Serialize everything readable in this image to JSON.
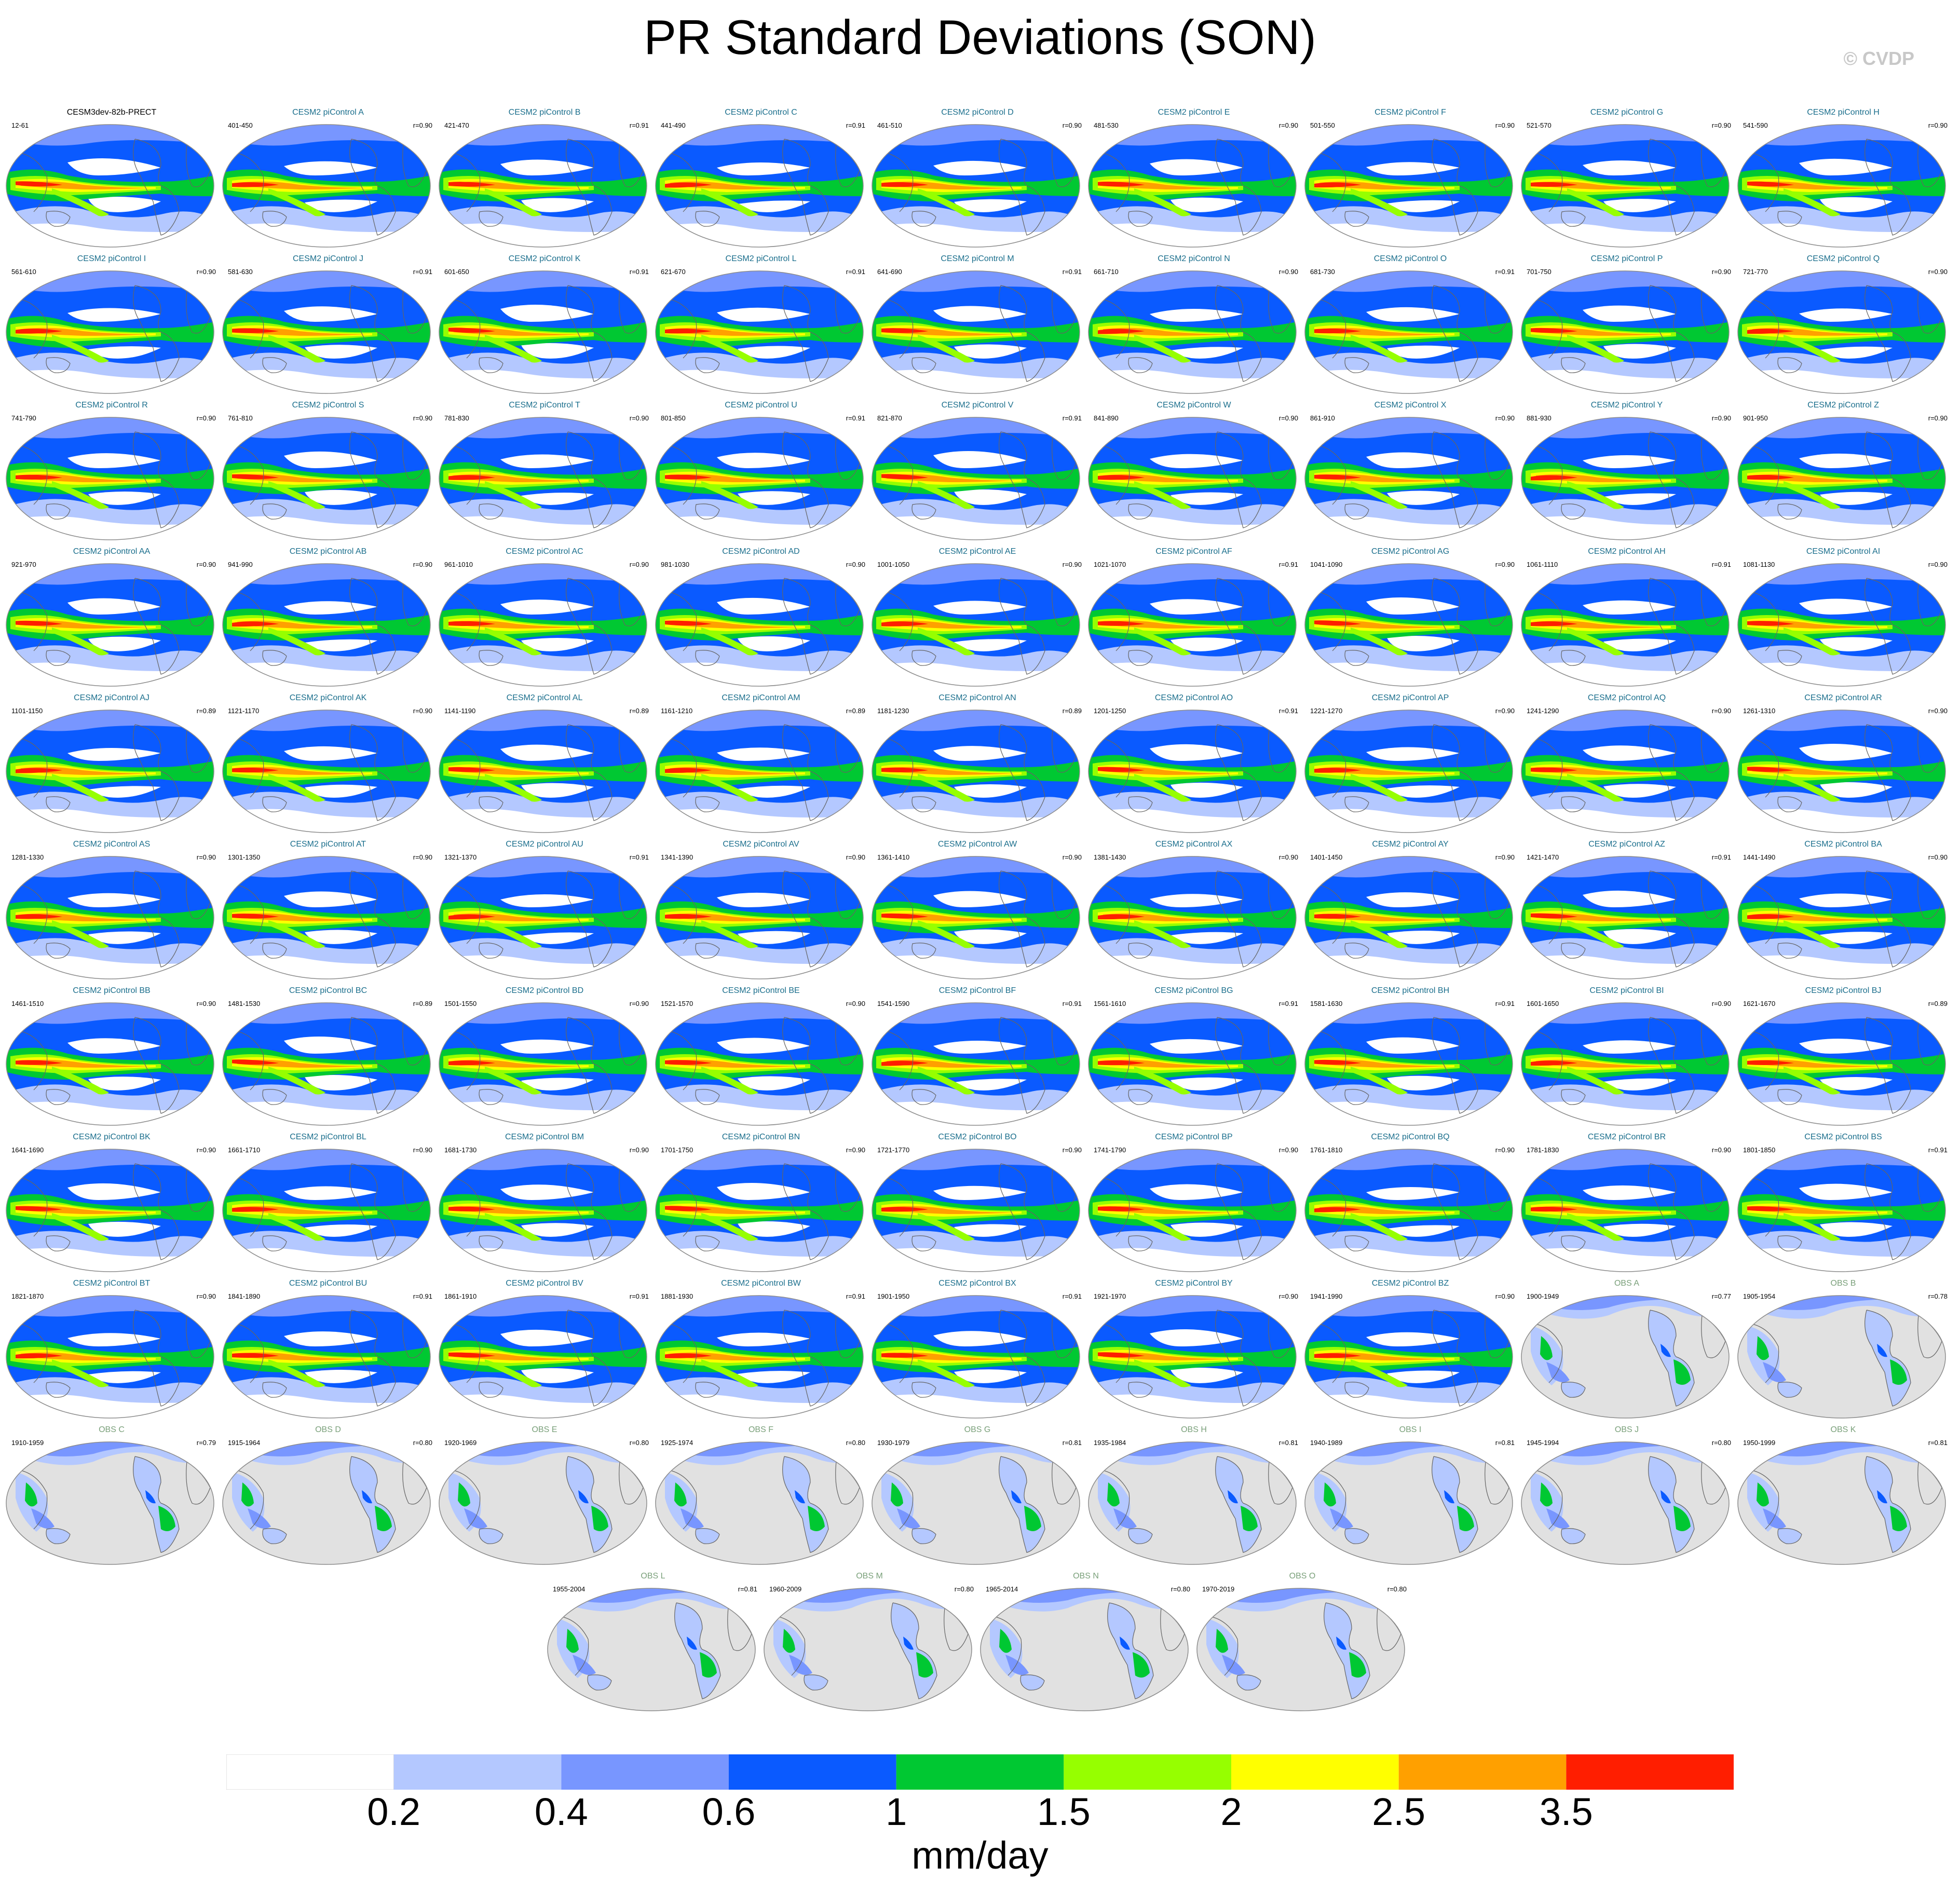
{
  "title": "PR Standard Deviations (SON)",
  "copyright": "© CVDP",
  "colors": {
    "levels": [
      "#ffffff",
      "#b4c8ff",
      "#7896ff",
      "#0a5aff",
      "#00c832",
      "#96ff00",
      "#ffff00",
      "#ffa000",
      "#ff1e00"
    ],
    "land_obs": "#e1e1e1",
    "coast": "#646464"
  },
  "panels": [
    {
      "title": "CESM3dev-82b-PRECT",
      "years": "12-61",
      "r": "",
      "kind": "base"
    },
    {
      "title": "CESM2 piControl A",
      "years": "401-450",
      "r": "r=0.90",
      "kind": "model"
    },
    {
      "title": "CESM2 piControl B",
      "years": "421-470",
      "r": "r=0.91",
      "kind": "model"
    },
    {
      "title": "CESM2 piControl C",
      "years": "441-490",
      "r": "r=0.91",
      "kind": "model"
    },
    {
      "title": "CESM2 piControl D",
      "years": "461-510",
      "r": "r=0.90",
      "kind": "model"
    },
    {
      "title": "CESM2 piControl E",
      "years": "481-530",
      "r": "r=0.90",
      "kind": "model"
    },
    {
      "title": "CESM2 piControl F",
      "years": "501-550",
      "r": "r=0.90",
      "kind": "model"
    },
    {
      "title": "CESM2 piControl G",
      "years": "521-570",
      "r": "r=0.90",
      "kind": "model"
    },
    {
      "title": "CESM2 piControl H",
      "years": "541-590",
      "r": "r=0.90",
      "kind": "model"
    },
    {
      "title": "CESM2 piControl I",
      "years": "561-610",
      "r": "r=0.90",
      "kind": "model"
    },
    {
      "title": "CESM2 piControl J",
      "years": "581-630",
      "r": "r=0.91",
      "kind": "model"
    },
    {
      "title": "CESM2 piControl K",
      "years": "601-650",
      "r": "r=0.91",
      "kind": "model"
    },
    {
      "title": "CESM2 piControl L",
      "years": "621-670",
      "r": "r=0.91",
      "kind": "model"
    },
    {
      "title": "CESM2 piControl M",
      "years": "641-690",
      "r": "r=0.91",
      "kind": "model"
    },
    {
      "title": "CESM2 piControl N",
      "years": "661-710",
      "r": "r=0.90",
      "kind": "model"
    },
    {
      "title": "CESM2 piControl O",
      "years": "681-730",
      "r": "r=0.91",
      "kind": "model"
    },
    {
      "title": "CESM2 piControl P",
      "years": "701-750",
      "r": "r=0.90",
      "kind": "model"
    },
    {
      "title": "CESM2 piControl Q",
      "years": "721-770",
      "r": "r=0.90",
      "kind": "model"
    },
    {
      "title": "CESM2 piControl R",
      "years": "741-790",
      "r": "r=0.90",
      "kind": "model"
    },
    {
      "title": "CESM2 piControl S",
      "years": "761-810",
      "r": "r=0.90",
      "kind": "model"
    },
    {
      "title": "CESM2 piControl T",
      "years": "781-830",
      "r": "r=0.90",
      "kind": "model"
    },
    {
      "title": "CESM2 piControl U",
      "years": "801-850",
      "r": "r=0.91",
      "kind": "model"
    },
    {
      "title": "CESM2 piControl V",
      "years": "821-870",
      "r": "r=0.91",
      "kind": "model"
    },
    {
      "title": "CESM2 piControl W",
      "years": "841-890",
      "r": "r=0.90",
      "kind": "model"
    },
    {
      "title": "CESM2 piControl X",
      "years": "861-910",
      "r": "r=0.90",
      "kind": "model"
    },
    {
      "title": "CESM2 piControl Y",
      "years": "881-930",
      "r": "r=0.90",
      "kind": "model"
    },
    {
      "title": "CESM2 piControl Z",
      "years": "901-950",
      "r": "r=0.90",
      "kind": "model"
    },
    {
      "title": "CESM2 piControl AA",
      "years": "921-970",
      "r": "r=0.90",
      "kind": "model"
    },
    {
      "title": "CESM2 piControl AB",
      "years": "941-990",
      "r": "r=0.90",
      "kind": "model"
    },
    {
      "title": "CESM2 piControl AC",
      "years": "961-1010",
      "r": "r=0.90",
      "kind": "model"
    },
    {
      "title": "CESM2 piControl AD",
      "years": "981-1030",
      "r": "r=0.90",
      "kind": "model"
    },
    {
      "title": "CESM2 piControl AE",
      "years": "1001-1050",
      "r": "r=0.90",
      "kind": "model"
    },
    {
      "title": "CESM2 piControl AF",
      "years": "1021-1070",
      "r": "r=0.91",
      "kind": "model"
    },
    {
      "title": "CESM2 piControl AG",
      "years": "1041-1090",
      "r": "r=0.90",
      "kind": "model"
    },
    {
      "title": "CESM2 piControl AH",
      "years": "1061-1110",
      "r": "r=0.91",
      "kind": "model"
    },
    {
      "title": "CESM2 piControl AI",
      "years": "1081-1130",
      "r": "r=0.90",
      "kind": "model"
    },
    {
      "title": "CESM2 piControl AJ",
      "years": "1101-1150",
      "r": "r=0.89",
      "kind": "model"
    },
    {
      "title": "CESM2 piControl AK",
      "years": "1121-1170",
      "r": "r=0.90",
      "kind": "model"
    },
    {
      "title": "CESM2 piControl AL",
      "years": "1141-1190",
      "r": "r=0.89",
      "kind": "model"
    },
    {
      "title": "CESM2 piControl AM",
      "years": "1161-1210",
      "r": "r=0.89",
      "kind": "model"
    },
    {
      "title": "CESM2 piControl AN",
      "years": "1181-1230",
      "r": "r=0.89",
      "kind": "model"
    },
    {
      "title": "CESM2 piControl AO",
      "years": "1201-1250",
      "r": "r=0.91",
      "kind": "model"
    },
    {
      "title": "CESM2 piControl AP",
      "years": "1221-1270",
      "r": "r=0.90",
      "kind": "model"
    },
    {
      "title": "CESM2 piControl AQ",
      "years": "1241-1290",
      "r": "r=0.90",
      "kind": "model"
    },
    {
      "title": "CESM2 piControl AR",
      "years": "1261-1310",
      "r": "r=0.90",
      "kind": "model"
    },
    {
      "title": "CESM2 piControl AS",
      "years": "1281-1330",
      "r": "r=0.90",
      "kind": "model"
    },
    {
      "title": "CESM2 piControl AT",
      "years": "1301-1350",
      "r": "r=0.90",
      "kind": "model"
    },
    {
      "title": "CESM2 piControl AU",
      "years": "1321-1370",
      "r": "r=0.91",
      "kind": "model"
    },
    {
      "title": "CESM2 piControl AV",
      "years": "1341-1390",
      "r": "r=0.90",
      "kind": "model"
    },
    {
      "title": "CESM2 piControl AW",
      "years": "1361-1410",
      "r": "r=0.90",
      "kind": "model"
    },
    {
      "title": "CESM2 piControl AX",
      "years": "1381-1430",
      "r": "r=0.90",
      "kind": "model"
    },
    {
      "title": "CESM2 piControl AY",
      "years": "1401-1450",
      "r": "r=0.90",
      "kind": "model"
    },
    {
      "title": "CESM2 piControl AZ",
      "years": "1421-1470",
      "r": "r=0.91",
      "kind": "model"
    },
    {
      "title": "CESM2 piControl BA",
      "years": "1441-1490",
      "r": "r=0.90",
      "kind": "model"
    },
    {
      "title": "CESM2 piControl BB",
      "years": "1461-1510",
      "r": "r=0.90",
      "kind": "model"
    },
    {
      "title": "CESM2 piControl BC",
      "years": "1481-1530",
      "r": "r=0.89",
      "kind": "model"
    },
    {
      "title": "CESM2 piControl BD",
      "years": "1501-1550",
      "r": "r=0.90",
      "kind": "model"
    },
    {
      "title": "CESM2 piControl BE",
      "years": "1521-1570",
      "r": "r=0.90",
      "kind": "model"
    },
    {
      "title": "CESM2 piControl BF",
      "years": "1541-1590",
      "r": "r=0.91",
      "kind": "model"
    },
    {
      "title": "CESM2 piControl BG",
      "years": "1561-1610",
      "r": "r=0.91",
      "kind": "model"
    },
    {
      "title": "CESM2 piControl BH",
      "years": "1581-1630",
      "r": "r=0.91",
      "kind": "model"
    },
    {
      "title": "CESM2 piControl BI",
      "years": "1601-1650",
      "r": "r=0.90",
      "kind": "model"
    },
    {
      "title": "CESM2 piControl BJ",
      "years": "1621-1670",
      "r": "r=0.89",
      "kind": "model"
    },
    {
      "title": "CESM2 piControl BK",
      "years": "1641-1690",
      "r": "r=0.90",
      "kind": "model"
    },
    {
      "title": "CESM2 piControl BL",
      "years": "1661-1710",
      "r": "r=0.90",
      "kind": "model"
    },
    {
      "title": "CESM2 piControl BM",
      "years": "1681-1730",
      "r": "r=0.90",
      "kind": "model"
    },
    {
      "title": "CESM2 piControl BN",
      "years": "1701-1750",
      "r": "r=0.90",
      "kind": "model"
    },
    {
      "title": "CESM2 piControl BO",
      "years": "1721-1770",
      "r": "r=0.90",
      "kind": "model"
    },
    {
      "title": "CESM2 piControl BP",
      "years": "1741-1790",
      "r": "r=0.90",
      "kind": "model"
    },
    {
      "title": "CESM2 piControl BQ",
      "years": "1761-1810",
      "r": "r=0.90",
      "kind": "model"
    },
    {
      "title": "CESM2 piControl BR",
      "years": "1781-1830",
      "r": "r=0.90",
      "kind": "model"
    },
    {
      "title": "CESM2 piControl BS",
      "years": "1801-1850",
      "r": "r=0.91",
      "kind": "model"
    },
    {
      "title": "CESM2 piControl BT",
      "years": "1821-1870",
      "r": "r=0.90",
      "kind": "model"
    },
    {
      "title": "CESM2 piControl BU",
      "years": "1841-1890",
      "r": "r=0.91",
      "kind": "model"
    },
    {
      "title": "CESM2 piControl BV",
      "years": "1861-1910",
      "r": "r=0.91",
      "kind": "model"
    },
    {
      "title": "CESM2 piControl BW",
      "years": "1881-1930",
      "r": "r=0.91",
      "kind": "model"
    },
    {
      "title": "CESM2 piControl BX",
      "years": "1901-1950",
      "r": "r=0.91",
      "kind": "model"
    },
    {
      "title": "CESM2 piControl BY",
      "years": "1921-1970",
      "r": "r=0.90",
      "kind": "model"
    },
    {
      "title": "CESM2 piControl BZ",
      "years": "1941-1990",
      "r": "r=0.90",
      "kind": "model"
    },
    {
      "title": "OBS A",
      "years": "1900-1949",
      "r": "r=0.77",
      "kind": "obs"
    },
    {
      "title": "OBS B",
      "years": "1905-1954",
      "r": "r=0.78",
      "kind": "obs"
    },
    {
      "title": "OBS C",
      "years": "1910-1959",
      "r": "r=0.79",
      "kind": "obs"
    },
    {
      "title": "OBS D",
      "years": "1915-1964",
      "r": "r=0.80",
      "kind": "obs"
    },
    {
      "title": "OBS E",
      "years": "1920-1969",
      "r": "r=0.80",
      "kind": "obs"
    },
    {
      "title": "OBS F",
      "years": "1925-1974",
      "r": "r=0.80",
      "kind": "obs"
    },
    {
      "title": "OBS G",
      "years": "1930-1979",
      "r": "r=0.81",
      "kind": "obs"
    },
    {
      "title": "OBS H",
      "years": "1935-1984",
      "r": "r=0.81",
      "kind": "obs"
    },
    {
      "title": "OBS I",
      "years": "1940-1989",
      "r": "r=0.81",
      "kind": "obs"
    },
    {
      "title": "OBS J",
      "years": "1945-1994",
      "r": "r=0.80",
      "kind": "obs"
    },
    {
      "title": "OBS K",
      "years": "1950-1999",
      "r": "r=0.81",
      "kind": "obs"
    },
    {
      "title": "OBS L",
      "years": "1955-2004",
      "r": "r=0.81",
      "kind": "obs"
    },
    {
      "title": "OBS M",
      "years": "1960-2009",
      "r": "r=0.80",
      "kind": "obs"
    },
    {
      "title": "OBS N",
      "years": "1965-2014",
      "r": "r=0.80",
      "kind": "obs"
    },
    {
      "title": "OBS O",
      "years": "1970-2019",
      "r": "r=0.80",
      "kind": "obs"
    }
  ],
  "chart_data": {
    "type": "heatmap",
    "title": "PR Standard Deviations (SON)",
    "colorbar": {
      "units": "mm/day",
      "tick_labels": [
        "0.2",
        "0.4",
        "0.6",
        "1",
        "1.5",
        "2",
        "2.5",
        "3.5"
      ],
      "levels": [
        0.2,
        0.4,
        0.6,
        1,
        1.5,
        2,
        2.5,
        3.5
      ],
      "colors": [
        "#ffffff",
        "#b4c8ff",
        "#7896ff",
        "#0a5aff",
        "#00c832",
        "#96ff00",
        "#ffff00",
        "#ffa000",
        "#ff1e00"
      ]
    }
  }
}
